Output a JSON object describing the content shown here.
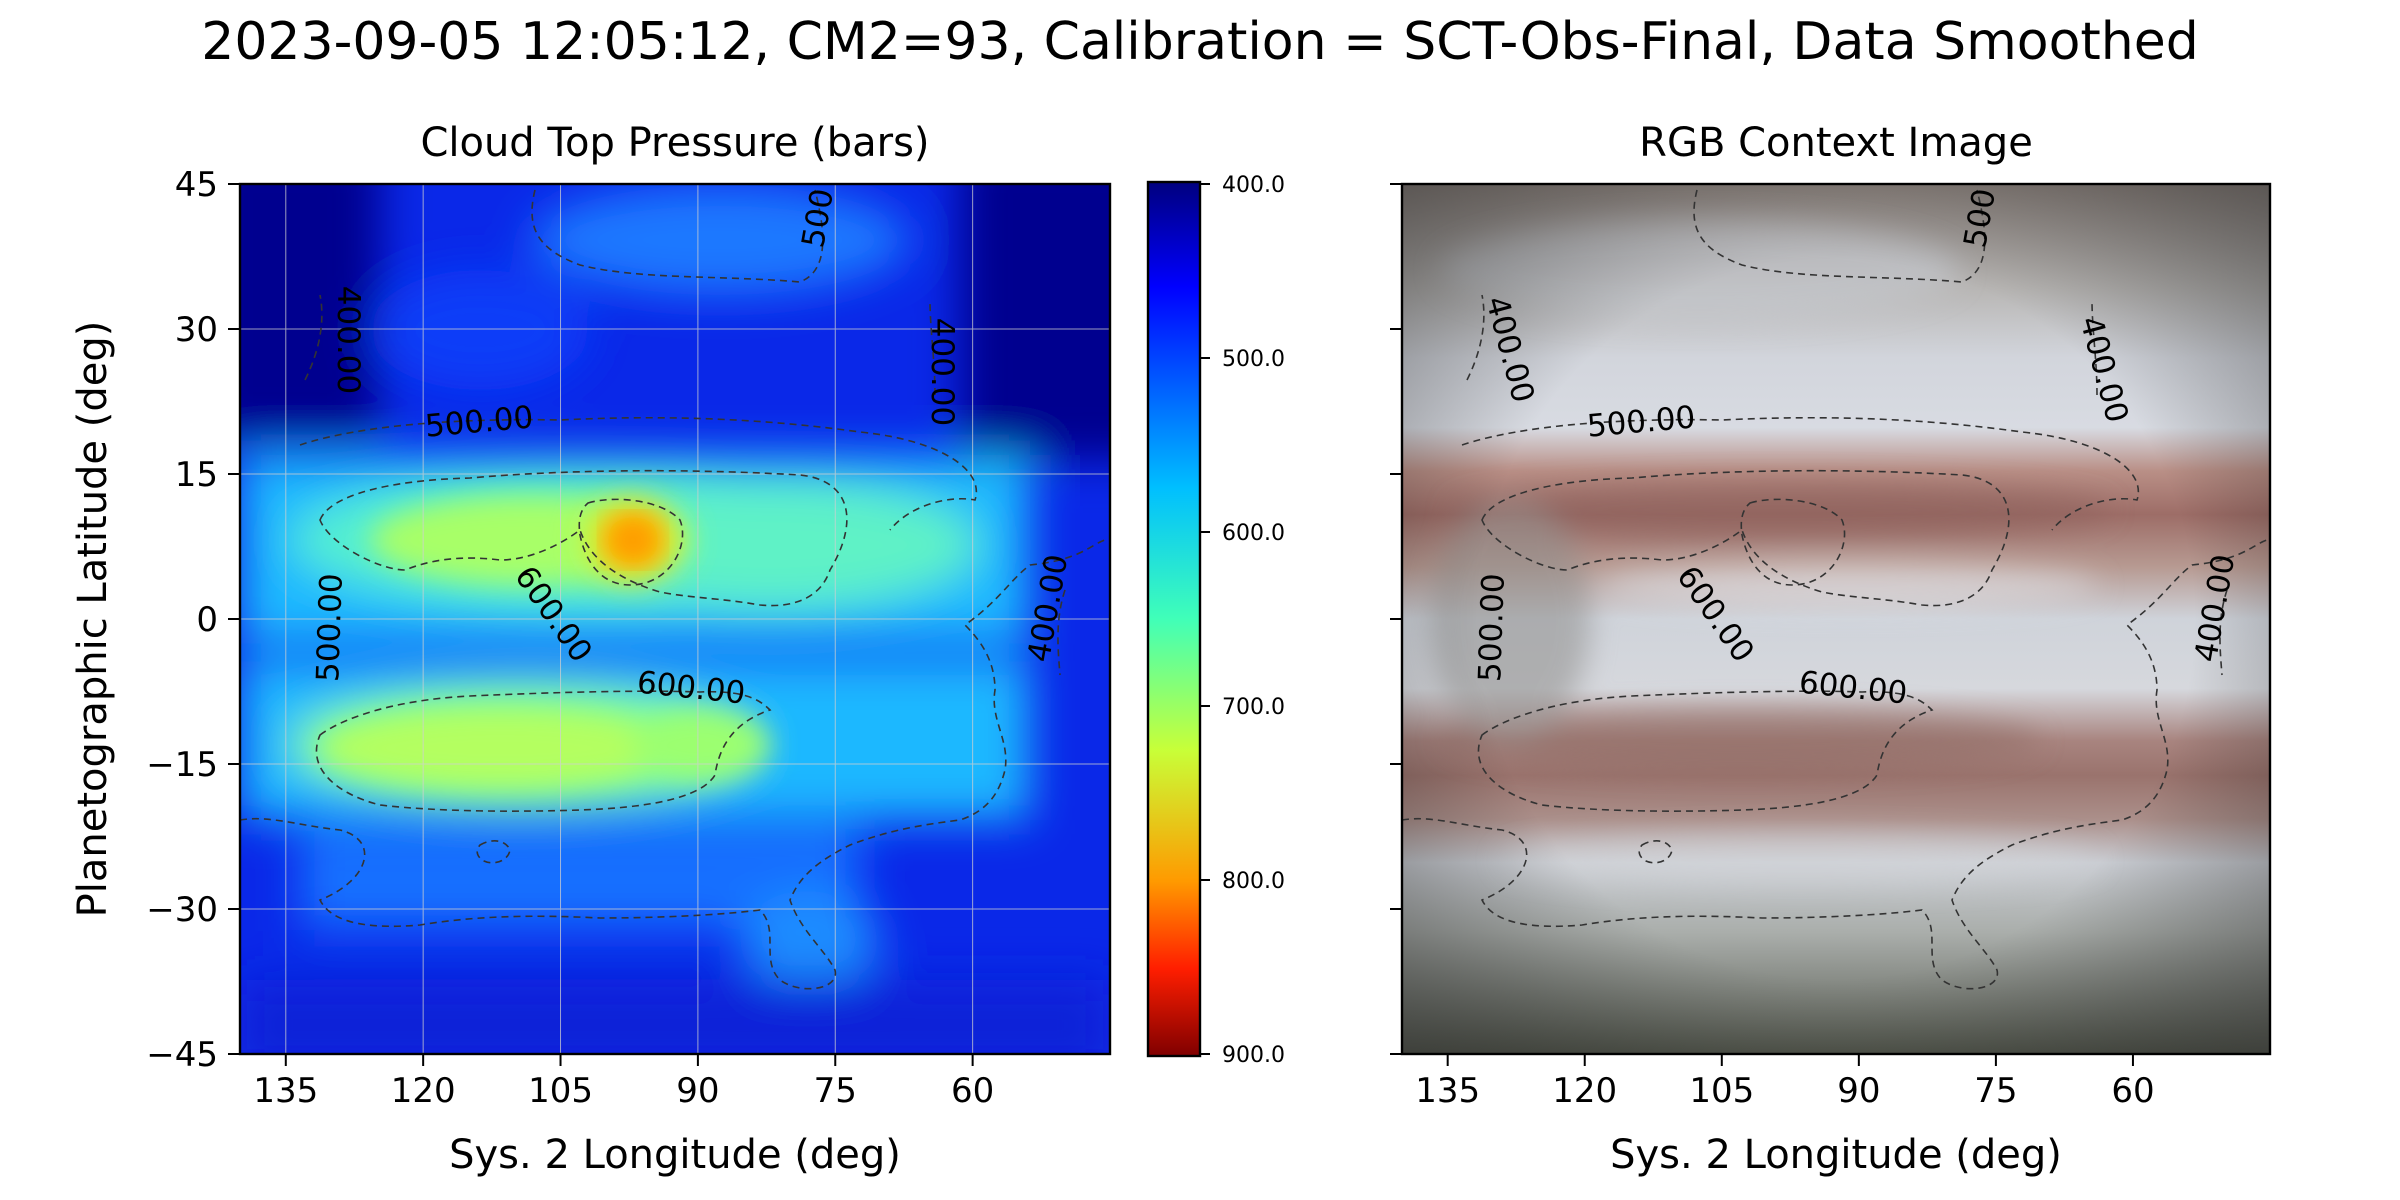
{
  "suptitle": "2023-09-05 12:05:12, CM2=93, Calibration = SCT-Obs-Final, Data Smoothed",
  "chart_data": [
    {
      "type": "heatmap",
      "title": "Cloud Top Pressure (bars)",
      "xlabel": "Sys. 2 Longitude (deg)",
      "ylabel": "Planetographic Latitude (deg)",
      "xlim": [
        140,
        45
      ],
      "ylim": [
        -45,
        45
      ],
      "xticks": [
        "135",
        "120",
        "105",
        "90",
        "75",
        "60"
      ],
      "yticks": [
        "45",
        "30",
        "15",
        "0",
        "−15",
        "−30",
        "−45"
      ],
      "grid": true,
      "colormap": "jet_r",
      "color_range": [
        400,
        900
      ],
      "colorbar_ticks": [
        "400.0",
        "500.0",
        "600.0",
        "700.0",
        "800.0",
        "900.0"
      ],
      "features": [
        {
          "kind": "high_pressure_spot",
          "lon": 97,
          "lat": 8,
          "value": 790
        },
        {
          "kind": "band",
          "lon_range": [
            135,
            72
          ],
          "lat_range": [
            3,
            15
          ],
          "value": 680
        },
        {
          "kind": "band",
          "lon_range": [
            133,
            82
          ],
          "lat_range": [
            -20,
            -7
          ],
          "value": 690
        },
        {
          "kind": "low_pressure_region",
          "lon_range": [
            140,
            45
          ],
          "lat_range": [
            20,
            45
          ],
          "value": 450
        }
      ],
      "contour_levels": [
        400,
        500,
        600
      ],
      "contour_labels": [
        "400.00",
        "400.00",
        "500.00",
        "500",
        "500.00",
        "600.00",
        "600.00",
        "400.00"
      ]
    },
    {
      "type": "image",
      "title": "RGB Context Image",
      "xlabel": "Sys. 2 Longitude (deg)",
      "xlim": [
        140,
        45
      ],
      "ylim": [
        -45,
        45
      ],
      "xticks": [
        "135",
        "120",
        "105",
        "90",
        "75",
        "60"
      ],
      "contour_labels": [
        "400.00",
        "400.00",
        "500.00",
        "500",
        "500.00",
        "600.00",
        "600.00",
        "400.00"
      ]
    }
  ],
  "colors": {
    "belt_red": "#9b6f6a",
    "zone_light": "#d9dde4",
    "edge_dark": "#4e524d",
    "contour": "#333333",
    "grid": "#d0d0d0"
  }
}
